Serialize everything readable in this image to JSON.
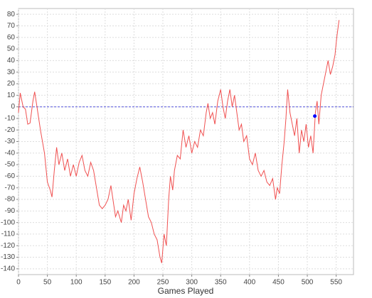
{
  "chart_data": {
    "type": "line",
    "x_label": "Games Played",
    "x": [
      0,
      3,
      8,
      12,
      16,
      20,
      25,
      28,
      32,
      38,
      45,
      50,
      55,
      58,
      62,
      66,
      70,
      75,
      80,
      85,
      90,
      95,
      100,
      105,
      110,
      115,
      120,
      125,
      130,
      135,
      140,
      145,
      150,
      155,
      160,
      165,
      168,
      172,
      178,
      182,
      186,
      190,
      195,
      200,
      205,
      210,
      215,
      220,
      225,
      230,
      235,
      240,
      245,
      248,
      252,
      256,
      260,
      263,
      267,
      270,
      275,
      280,
      285,
      290,
      295,
      300,
      305,
      310,
      315,
      320,
      325,
      328,
      332,
      336,
      340,
      345,
      350,
      354,
      358,
      362,
      366,
      370,
      374,
      378,
      382,
      386,
      390,
      395,
      400,
      405,
      410,
      415,
      420,
      425,
      430,
      435,
      440,
      445,
      448,
      452,
      456,
      460,
      463,
      466,
      470,
      474,
      478,
      482,
      486,
      490,
      494,
      498,
      502,
      506,
      510,
      514,
      517,
      520,
      524,
      528,
      532,
      536,
      540,
      544,
      548,
      551,
      555
    ],
    "values": [
      -5,
      12,
      0,
      -2,
      -15,
      -14,
      5,
      13,
      0,
      -20,
      -40,
      -65,
      -72,
      -78,
      -55,
      -35,
      -50,
      -40,
      -55,
      -45,
      -60,
      -50,
      -60,
      -48,
      -42,
      -55,
      -60,
      -48,
      -55,
      -70,
      -85,
      -88,
      -85,
      -80,
      -68,
      -85,
      -95,
      -90,
      -100,
      -85,
      -90,
      -80,
      -98,
      -75,
      -62,
      -52,
      -65,
      -80,
      -95,
      -100,
      -110,
      -115,
      -130,
      -135,
      -110,
      -120,
      -80,
      -60,
      -72,
      -55,
      -42,
      -45,
      -20,
      -35,
      -25,
      -40,
      -30,
      -35,
      -20,
      -25,
      -5,
      3,
      -10,
      -5,
      -15,
      5,
      15,
      0,
      -10,
      5,
      15,
      0,
      10,
      -5,
      -20,
      -15,
      -30,
      -25,
      -45,
      -50,
      -40,
      -55,
      -60,
      -55,
      -65,
      -68,
      -62,
      -80,
      -70,
      -75,
      -50,
      -30,
      -10,
      15,
      -5,
      -15,
      -25,
      -10,
      -40,
      -20,
      -30,
      -15,
      -35,
      -25,
      -40,
      -5,
      5,
      -15,
      10,
      20,
      30,
      40,
      28,
      35,
      45,
      60,
      75
    ],
    "color": "#f05050",
    "point": {
      "x": 513,
      "y": -8,
      "color": "#0000ff"
    },
    "zero_line_color": "#5555dd",
    "xlim": [
      0,
      580
    ],
    "ylim": [
      -145,
      85
    ],
    "xticks": [
      0,
      50,
      100,
      150,
      200,
      250,
      300,
      350,
      400,
      450,
      500,
      550
    ],
    "yticks": [
      -140,
      -130,
      -120,
      -110,
      -100,
      -90,
      -80,
      -70,
      -60,
      -50,
      -40,
      -30,
      -20,
      -10,
      0,
      10,
      20,
      30,
      40,
      50,
      60,
      70,
      80
    ],
    "grid": true
  }
}
